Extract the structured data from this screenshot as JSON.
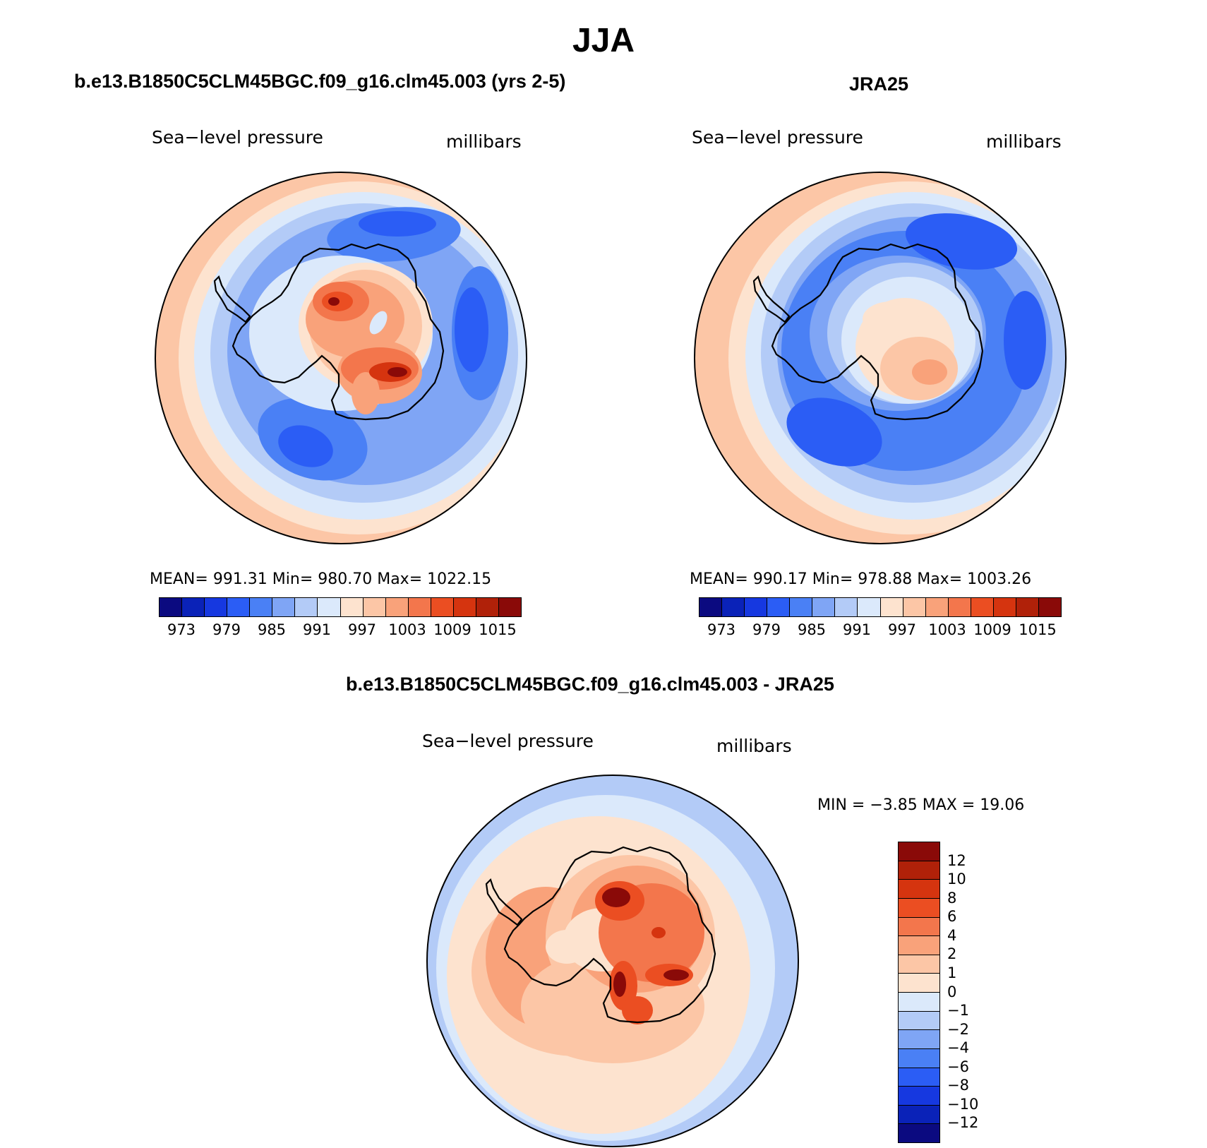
{
  "title": "JJA",
  "panels": {
    "model": {
      "title": "b.e13.B1850C5CLM45BGC.f09_g16.clm45.003 (yrs 2-5)",
      "variable": "Sea−level pressure",
      "units": "millibars",
      "stats": "MEAN=  991.31   Min=  980.70   Max=  1022.15"
    },
    "obs": {
      "title": "JRA25",
      "variable": "Sea−level pressure",
      "units": "millibars",
      "stats": "MEAN=  990.17   Min=  978.88   Max=  1003.26"
    },
    "diff": {
      "title": "b.e13.B1850C5CLM45BGC.f09_g16.clm45.003 - JRA25",
      "variable": "Sea−level pressure",
      "units": "millibars",
      "stats": "MIN =    −3.85  MAX =    19.06"
    }
  },
  "chart_data": [
    {
      "type": "heatmap",
      "title": "b.e13.B1850C5CLM45BGC.f09_g16.clm45.003 (yrs 2-5)",
      "variable": "Sea−level pressure",
      "units": "millibars",
      "projection": "south polar stereographic",
      "mean": 991.31,
      "min": 980.7,
      "max": 1022.15,
      "colorbar": {
        "orientation": "horizontal",
        "tick_labels": [
          "973",
          "979",
          "985",
          "991",
          "997",
          "1003",
          "1009",
          "1015"
        ],
        "levels": [
          970,
          973,
          976,
          979,
          982,
          985,
          988,
          991,
          994,
          997,
          1000,
          1003,
          1006,
          1009,
          1012,
          1015,
          1018
        ],
        "colors": [
          "#0b0a80",
          "#0a22b8",
          "#1638e0",
          "#2b5df5",
          "#4a80f5",
          "#7fa5f5",
          "#b3cbf7",
          "#dbe9fb",
          "#fde3cf",
          "#fcc6a6",
          "#f9a27a",
          "#f3764c",
          "#eb4e22",
          "#d5340f",
          "#b02109",
          "#8a0a08"
        ]
      }
    },
    {
      "type": "heatmap",
      "title": "JRA25",
      "variable": "Sea−level pressure",
      "units": "millibars",
      "projection": "south polar stereographic",
      "mean": 990.17,
      "min": 978.88,
      "max": 1003.26,
      "colorbar": {
        "orientation": "horizontal",
        "tick_labels": [
          "973",
          "979",
          "985",
          "991",
          "997",
          "1003",
          "1009",
          "1015"
        ],
        "levels": [
          970,
          973,
          976,
          979,
          982,
          985,
          988,
          991,
          994,
          997,
          1000,
          1003,
          1006,
          1009,
          1012,
          1015,
          1018
        ],
        "colors": [
          "#0b0a80",
          "#0a22b8",
          "#1638e0",
          "#2b5df5",
          "#4a80f5",
          "#7fa5f5",
          "#b3cbf7",
          "#dbe9fb",
          "#fde3cf",
          "#fcc6a6",
          "#f9a27a",
          "#f3764c",
          "#eb4e22",
          "#d5340f",
          "#b02109",
          "#8a0a08"
        ]
      }
    },
    {
      "type": "heatmap",
      "title": "b.e13.B1850C5CLM45BGC.f09_g16.clm45.003 - JRA25",
      "variable": "Sea−level pressure",
      "units": "millibars",
      "projection": "south polar stereographic",
      "min": -3.85,
      "max": 19.06,
      "colorbar": {
        "orientation": "vertical",
        "tick_labels": [
          "12",
          "10",
          "8",
          "6",
          "4",
          "2",
          "1",
          "0",
          "−1",
          "−2",
          "−4",
          "−6",
          "−8",
          "−10",
          "−12"
        ],
        "colors_top_to_bottom": [
          "#8a0a08",
          "#b02109",
          "#d5340f",
          "#eb4e22",
          "#f3764c",
          "#f9a27a",
          "#fcc6a6",
          "#fde3cf",
          "#dbe9fb",
          "#b3cbf7",
          "#7fa5f5",
          "#4a80f5",
          "#2b5df5",
          "#1638e0",
          "#0a22b8",
          "#0b0a80"
        ]
      }
    }
  ],
  "map_colors": {
    "deep_low": "#2b5df5",
    "low": "#4a80f5",
    "mid_low": "#7fa5f5",
    "light_low": "#b3cbf7",
    "pale_low": "#dbe9fb",
    "pale_high": "#fde3cf",
    "light_high": "#fcc6a6",
    "mid_high": "#f9a27a",
    "high": "#f3764c",
    "strong_high": "#eb4e22",
    "very_high": "#d5340f",
    "max_high": "#8a0a08",
    "coast": "#000000"
  }
}
